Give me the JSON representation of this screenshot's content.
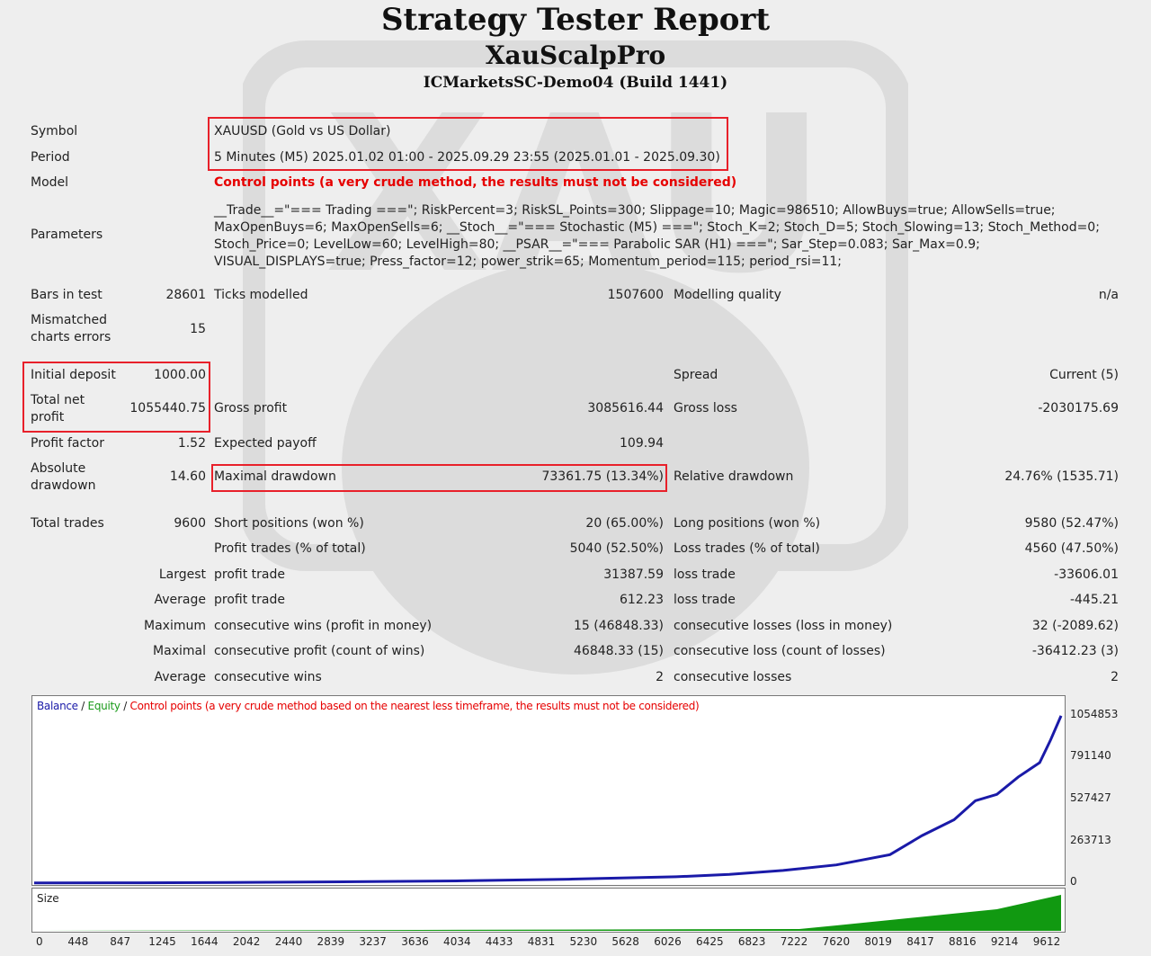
{
  "header": {
    "title": "Strategy Tester Report",
    "expert": "XauScalpPro",
    "server": "ICMarketsSC-Demo04 (Build 1441)"
  },
  "settings": {
    "symbol_label": "Symbol",
    "symbol_value": "XAUUSD (Gold vs US Dollar)",
    "period_label": "Period",
    "period_value": "5 Minutes (M5) 2025.01.02 01:00 - 2025.09.29 23:55 (2025.01.01 - 2025.09.30)",
    "model_label": "Model",
    "model_value": "Control points (a very crude method, the results must not be considered)",
    "parameters_label": "Parameters",
    "parameters_lines": [
      "__Trade__=\"=== Trading ===\"; RiskPercent=3; RiskSL_Points=300; Slippage=10; Magic=986510; AllowBuys=true; AllowSells=true;",
      "MaxOpenBuys=6; MaxOpenSells=6; __Stoch__=\"=== Stochastic (M5) ===\"; Stoch_K=2; Stoch_D=5; Stoch_Slowing=13; Stoch_Method=0;",
      "Stoch_Price=0; LevelLow=60; LevelHigh=80; __PSAR__=\"=== Parabolic SAR (H1) ===\"; Sar_Step=0.083; Sar_Max=0.9;",
      "VISUAL_DISPLAYS=true; Press_factor=12; power_strik=65; Momentum_period=115; period_rsi=11;"
    ]
  },
  "stats": {
    "bars_label": "Bars in test",
    "bars_value": "28601",
    "ticks_label": "Ticks modelled",
    "ticks_value": "1507600",
    "quality_label": "Modelling quality",
    "quality_value": "n/a",
    "mismatch_label_1": "Mismatched",
    "mismatch_label_2": "charts errors",
    "mismatch_value": "15",
    "initdep_label": "Initial deposit",
    "initdep_value": "1000.00",
    "spread_label": "Spread",
    "spread_value": "Current (5)",
    "netprofit_label_1": "Total net",
    "netprofit_label_2": "profit",
    "netprofit_value": "1055440.75",
    "grossprofit_label": "Gross profit",
    "grossprofit_value": "3085616.44",
    "grossloss_label": "Gross loss",
    "grossloss_value": "-2030175.69",
    "pf_label": "Profit factor",
    "pf_value": "1.52",
    "ep_label": "Expected payoff",
    "ep_value": "109.94",
    "absdd_label_1": "Absolute",
    "absdd_label_2": "drawdown",
    "absdd_value": "14.60",
    "maxdd_label": "Maximal drawdown",
    "maxdd_value": "73361.75 (13.34%)",
    "reldd_label": "Relative drawdown",
    "reldd_value": "24.76% (1535.71)",
    "tt_label": "Total trades",
    "tt_value": "9600",
    "short_label": "Short positions (won %)",
    "short_value": "20 (65.00%)",
    "long_label": "Long positions (won %)",
    "long_value": "9580 (52.47%)",
    "pt_label": "Profit trades (% of total)",
    "pt_value": "5040 (52.50%)",
    "lt_label": "Loss trades (% of total)",
    "lt_value": "4560 (47.50%)",
    "largest_label": "Largest",
    "largest_p_label": "profit trade",
    "largest_p_value": "31387.59",
    "largest_l_label": "loss trade",
    "largest_l_value": "-33606.01",
    "average_label": "Average",
    "average_p_label": "profit trade",
    "average_p_value": "612.23",
    "average_l_label": "loss trade",
    "average_l_value": "-445.21",
    "maximum_label": "Maximum",
    "maxcw_label": "consecutive wins (profit in money)",
    "maxcw_value": "15 (46848.33)",
    "maxcl_label": "consecutive losses (loss in money)",
    "maxcl_value": "32 (-2089.62)",
    "maximal_label": "Maximal",
    "maxcp_label": "consecutive profit (count of wins)",
    "maxcp_value": "46848.33 (15)",
    "maxclc_label": "consecutive loss (count of losses)",
    "maxclc_value": "-36412.23 (3)",
    "average2_label": "Average",
    "avgcw_label": "consecutive wins",
    "avgcw_value": "2",
    "avgcl_label": "consecutive losses",
    "avgcl_value": "2"
  },
  "chart_legend": {
    "balance": "Balance",
    "sep1": " / ",
    "equity": "Equity",
    "sep2": " / ",
    "control": "Control points (a very crude method based on the nearest less timeframe, the results must not be considered)"
  },
  "size_label": "Size",
  "colors": {
    "balance": "#1a1aa8",
    "size": "#119911",
    "highlight": "#e8202a",
    "warning": "#e60000"
  },
  "chart_data": {
    "type": "line",
    "title": "",
    "xlabel": "",
    "ylabel": "",
    "x_ticks": [
      "0",
      "448",
      "847",
      "1245",
      "1644",
      "2042",
      "2440",
      "2839",
      "3237",
      "3636",
      "4034",
      "4433",
      "4831",
      "5230",
      "5628",
      "6026",
      "6425",
      "6823",
      "7222",
      "7620",
      "8019",
      "8417",
      "8816",
      "9214",
      "9612"
    ],
    "y_ticks": [
      "1054853",
      "791140",
      "527427",
      "263713",
      "0"
    ],
    "ylim": [
      0,
      1054853
    ],
    "xlim": [
      0,
      9600
    ],
    "series": [
      {
        "name": "Balance",
        "x": [
          0,
          1000,
          2000,
          3000,
          4000,
          5000,
          6000,
          6500,
          7000,
          7500,
          8000,
          8300,
          8600,
          8800,
          9000,
          9200,
          9400,
          9500,
          9600
        ],
        "y": [
          1000,
          2500,
          5000,
          9000,
          15000,
          25000,
          40000,
          55000,
          80000,
          115000,
          180000,
          300000,
          400000,
          520000,
          560000,
          670000,
          760000,
          900000,
          1055440
        ]
      }
    ],
    "size_series": {
      "name": "Size",
      "x": [
        0,
        7150,
        7500,
        8000,
        8500,
        9000,
        9300,
        9600
      ],
      "y": [
        0,
        0.05,
        0.15,
        0.3,
        0.45,
        0.6,
        0.8,
        1.0
      ]
    }
  }
}
